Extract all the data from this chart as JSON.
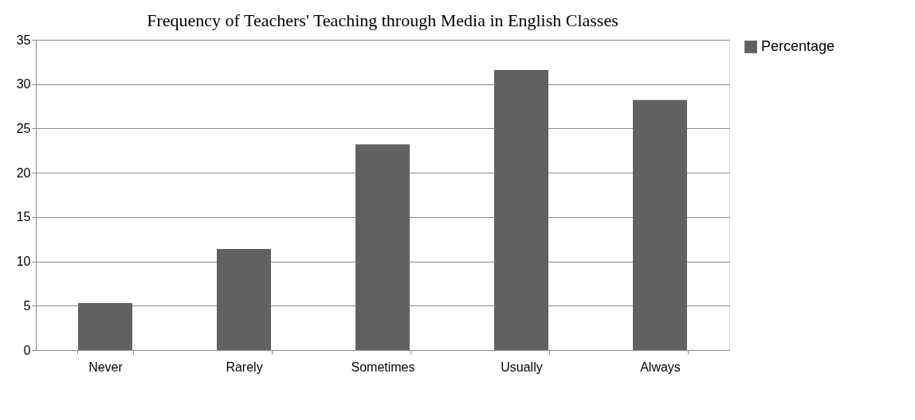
{
  "chart_data": {
    "type": "bar",
    "title": "Frequency of  Teachers' Teaching through Media in English Classes",
    "categories": [
      "Never",
      "Rarely",
      "Sometimes",
      "Usually",
      "Always"
    ],
    "series": [
      {
        "name": "Percentage",
        "color": "#616161",
        "values": [
          5.3,
          11.4,
          23.2,
          31.6,
          28.2
        ]
      }
    ],
    "ylim": [
      0,
      35
    ],
    "yticks": [
      0,
      5,
      10,
      15,
      20,
      25,
      30,
      35
    ],
    "grid": "y",
    "legend": "right"
  }
}
